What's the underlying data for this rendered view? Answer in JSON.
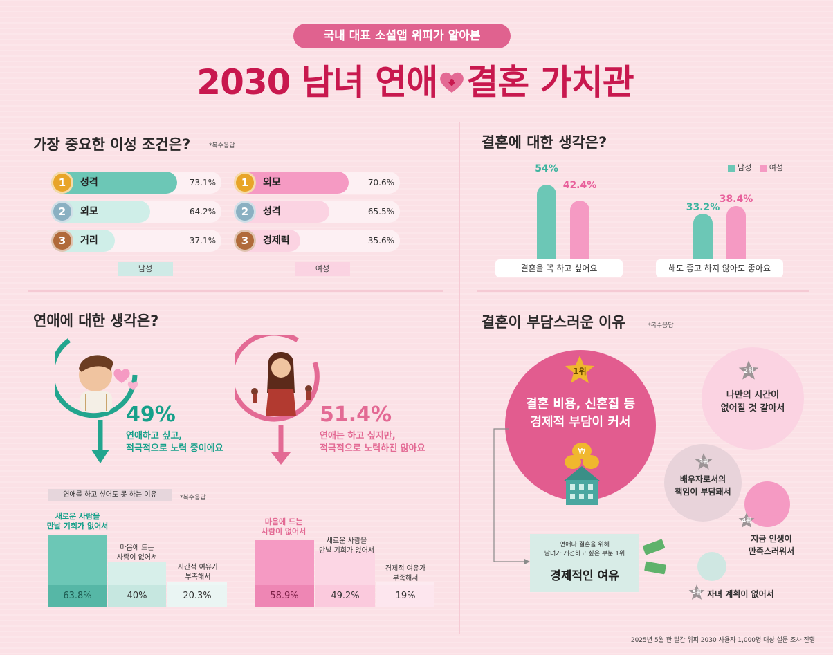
{
  "header": {
    "pill": "국내 대표 소셜앱 위피가 알아본",
    "title_left": "2030 남녀 연애",
    "title_right": "결혼 가치관"
  },
  "colors": {
    "male": "#6cc7b6",
    "female": "#f59ac3",
    "accent": "#c8184e",
    "pill": "#e0628f",
    "gold": "#e8a528",
    "silver": "#8ab0c2",
    "bronze": "#b06a3a"
  },
  "ideal": {
    "title": "가장 중요한 이성 조건은?",
    "note": "*복수응답",
    "male": {
      "tag": "남성",
      "items": [
        {
          "rank": "1",
          "label": "성격",
          "pct": "73.1%",
          "value": 73.1
        },
        {
          "rank": "2",
          "label": "외모",
          "pct": "64.2%",
          "value": 64.2
        },
        {
          "rank": "3",
          "label": "거리",
          "pct": "37.1%",
          "value": 37.1
        }
      ]
    },
    "female": {
      "tag": "여성",
      "items": [
        {
          "rank": "1",
          "label": "외모",
          "pct": "70.6%",
          "value": 70.6
        },
        {
          "rank": "2",
          "label": "성격",
          "pct": "65.5%",
          "value": 65.5
        },
        {
          "rank": "3",
          "label": "경제력",
          "pct": "35.6%",
          "value": 35.6
        }
      ]
    }
  },
  "marriage": {
    "title": "결혼에 대한 생각은?",
    "legend_male": "남성",
    "legend_female": "여성",
    "groups": [
      {
        "label": "결혼을 꼭 하고 싶어요",
        "male": "54%",
        "female": "42.4%",
        "male_v": 54,
        "female_v": 42.4
      },
      {
        "label": "해도 좋고 하지 않아도 좋아요",
        "male": "33.2%",
        "female": "38.4%",
        "male_v": 33.2,
        "female_v": 38.4
      }
    ]
  },
  "dating": {
    "title": "연애에 대한 생각은?",
    "male": {
      "pct": "49%",
      "line1": "연애하고 싶고,",
      "line2": "적극적으로 노력 중이에요"
    },
    "female": {
      "pct": "51.4%",
      "line1": "연애는 하고 싶지만,",
      "line2": "적극적으로 노력하진 않아요"
    },
    "reason_tag": "연애를 하고 싶어도 못 하는 이유",
    "reason_note": "*복수응답",
    "male_reasons": [
      {
        "label1": "새로운 사람을",
        "label2": "만날 기회가 없어서",
        "pct": "63.8%",
        "value": 63.8
      },
      {
        "label1": "마음에 드는",
        "label2": "사람이 없어서",
        "pct": "40%",
        "value": 40
      },
      {
        "label1": "시간적 여유가",
        "label2": "부족해서",
        "pct": "20.3%",
        "value": 20.3
      }
    ],
    "female_reasons": [
      {
        "label1": "마음에 드는",
        "label2": "사람이 없어서",
        "pct": "58.9%",
        "value": 58.9
      },
      {
        "label1": "새로운 사람을",
        "label2": "만날 기회가 없어서",
        "pct": "49.2%",
        "value": 49.2
      },
      {
        "label1": "경제적 여유가",
        "label2": "부족해서",
        "pct": "19%",
        "value": 19
      }
    ]
  },
  "burden": {
    "title": "결혼이 부담스러운 이유",
    "note": "*복수응답",
    "r1": {
      "rank": "1위",
      "line1": "결혼 비용, 신혼집 등",
      "line2": "경제적 부담이 커서"
    },
    "r2": {
      "rank": "2위",
      "line1": "나만의 시간이",
      "line2": "없어질 것 같아서"
    },
    "r3": {
      "rank": "3위",
      "line1": "배우자로서의",
      "line2": "책임이 부담돼서"
    },
    "r4": {
      "rank": "4위",
      "line1": "지금 인생이",
      "line2": "만족스러워서"
    },
    "r5": {
      "rank": "5위",
      "line1": "자녀 계획이 없어서"
    },
    "improve": {
      "line1": "연애나 결혼을 위해",
      "line2": "남녀가 개선하고 싶은 부분 1위",
      "main": "경제적인 여유"
    }
  },
  "chart_data": [
    {
      "type": "bar",
      "title": "가장 중요한 이성 조건은?",
      "series": [
        {
          "name": "남성",
          "categories": [
            "성격",
            "외모",
            "거리"
          ],
          "values": [
            73.1,
            64.2,
            37.1
          ]
        },
        {
          "name": "여성",
          "categories": [
            "외모",
            "성격",
            "경제력"
          ],
          "values": [
            70.6,
            65.5,
            35.6
          ]
        }
      ]
    },
    {
      "type": "bar",
      "title": "결혼에 대한 생각은?",
      "categories": [
        "결혼을 꼭 하고 싶어요",
        "해도 좋고 하지 않아도 좋아요"
      ],
      "series": [
        {
          "name": "남성",
          "values": [
            54,
            33.2
          ]
        },
        {
          "name": "여성",
          "values": [
            42.4,
            38.4
          ]
        }
      ]
    },
    {
      "type": "bar",
      "title": "연애를 하고 싶어도 못 하는 이유",
      "series": [
        {
          "name": "남성",
          "categories": [
            "새로운 사람을 만날 기회가 없어서",
            "마음에 드는 사람이 없어서",
            "시간적 여유가 부족해서"
          ],
          "values": [
            63.8,
            40,
            20.3
          ]
        },
        {
          "name": "여성",
          "categories": [
            "마음에 드는 사람이 없어서",
            "새로운 사람을 만날 기회가 없어서",
            "경제적 여유가 부족해서"
          ],
          "values": [
            58.9,
            49.2,
            19
          ]
        }
      ]
    }
  ],
  "footer": "2025년 5월 한 달간 위피 2030 사용자 1,000명 대상 설문 조사 진행"
}
